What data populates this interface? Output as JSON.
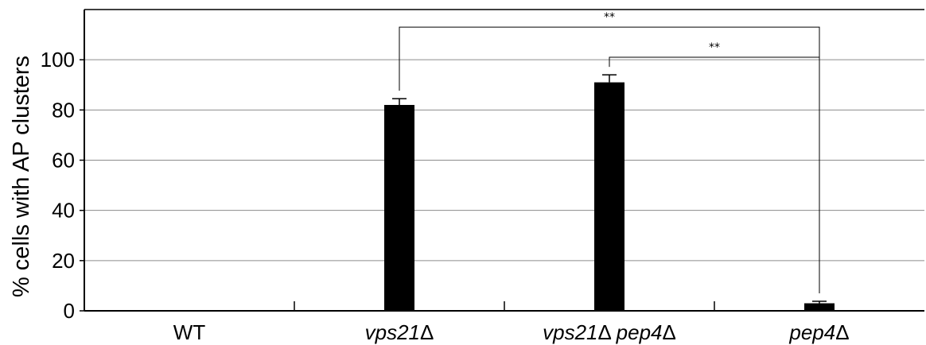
{
  "chart_data": {
    "type": "bar",
    "ylabel": "% cells with AP clusters",
    "ylim": [
      0,
      120
    ],
    "yticks": [
      0,
      20,
      40,
      60,
      80,
      100
    ],
    "grid": true,
    "categories": [
      {
        "parts": [
          {
            "text": "WT",
            "italic": false
          }
        ]
      },
      {
        "parts": [
          {
            "text": "vps21",
            "italic": true
          },
          {
            "text": "Δ",
            "italic": false
          }
        ]
      },
      {
        "parts": [
          {
            "text": "vps21",
            "italic": true
          },
          {
            "text": "Δ ",
            "italic": false
          },
          {
            "text": "pep4",
            "italic": true
          },
          {
            "text": "Δ",
            "italic": false
          }
        ]
      },
      {
        "parts": [
          {
            "text": "pep4",
            "italic": true
          },
          {
            "text": "Δ",
            "italic": false
          }
        ]
      }
    ],
    "values": [
      0,
      82,
      91,
      3
    ],
    "errors": [
      0,
      2.5,
      3,
      0.8
    ],
    "bar_color": "#000000",
    "significance": [
      {
        "from": 1,
        "to": 3,
        "label": "**"
      },
      {
        "from": 2,
        "to": 3,
        "label": "**"
      }
    ]
  }
}
